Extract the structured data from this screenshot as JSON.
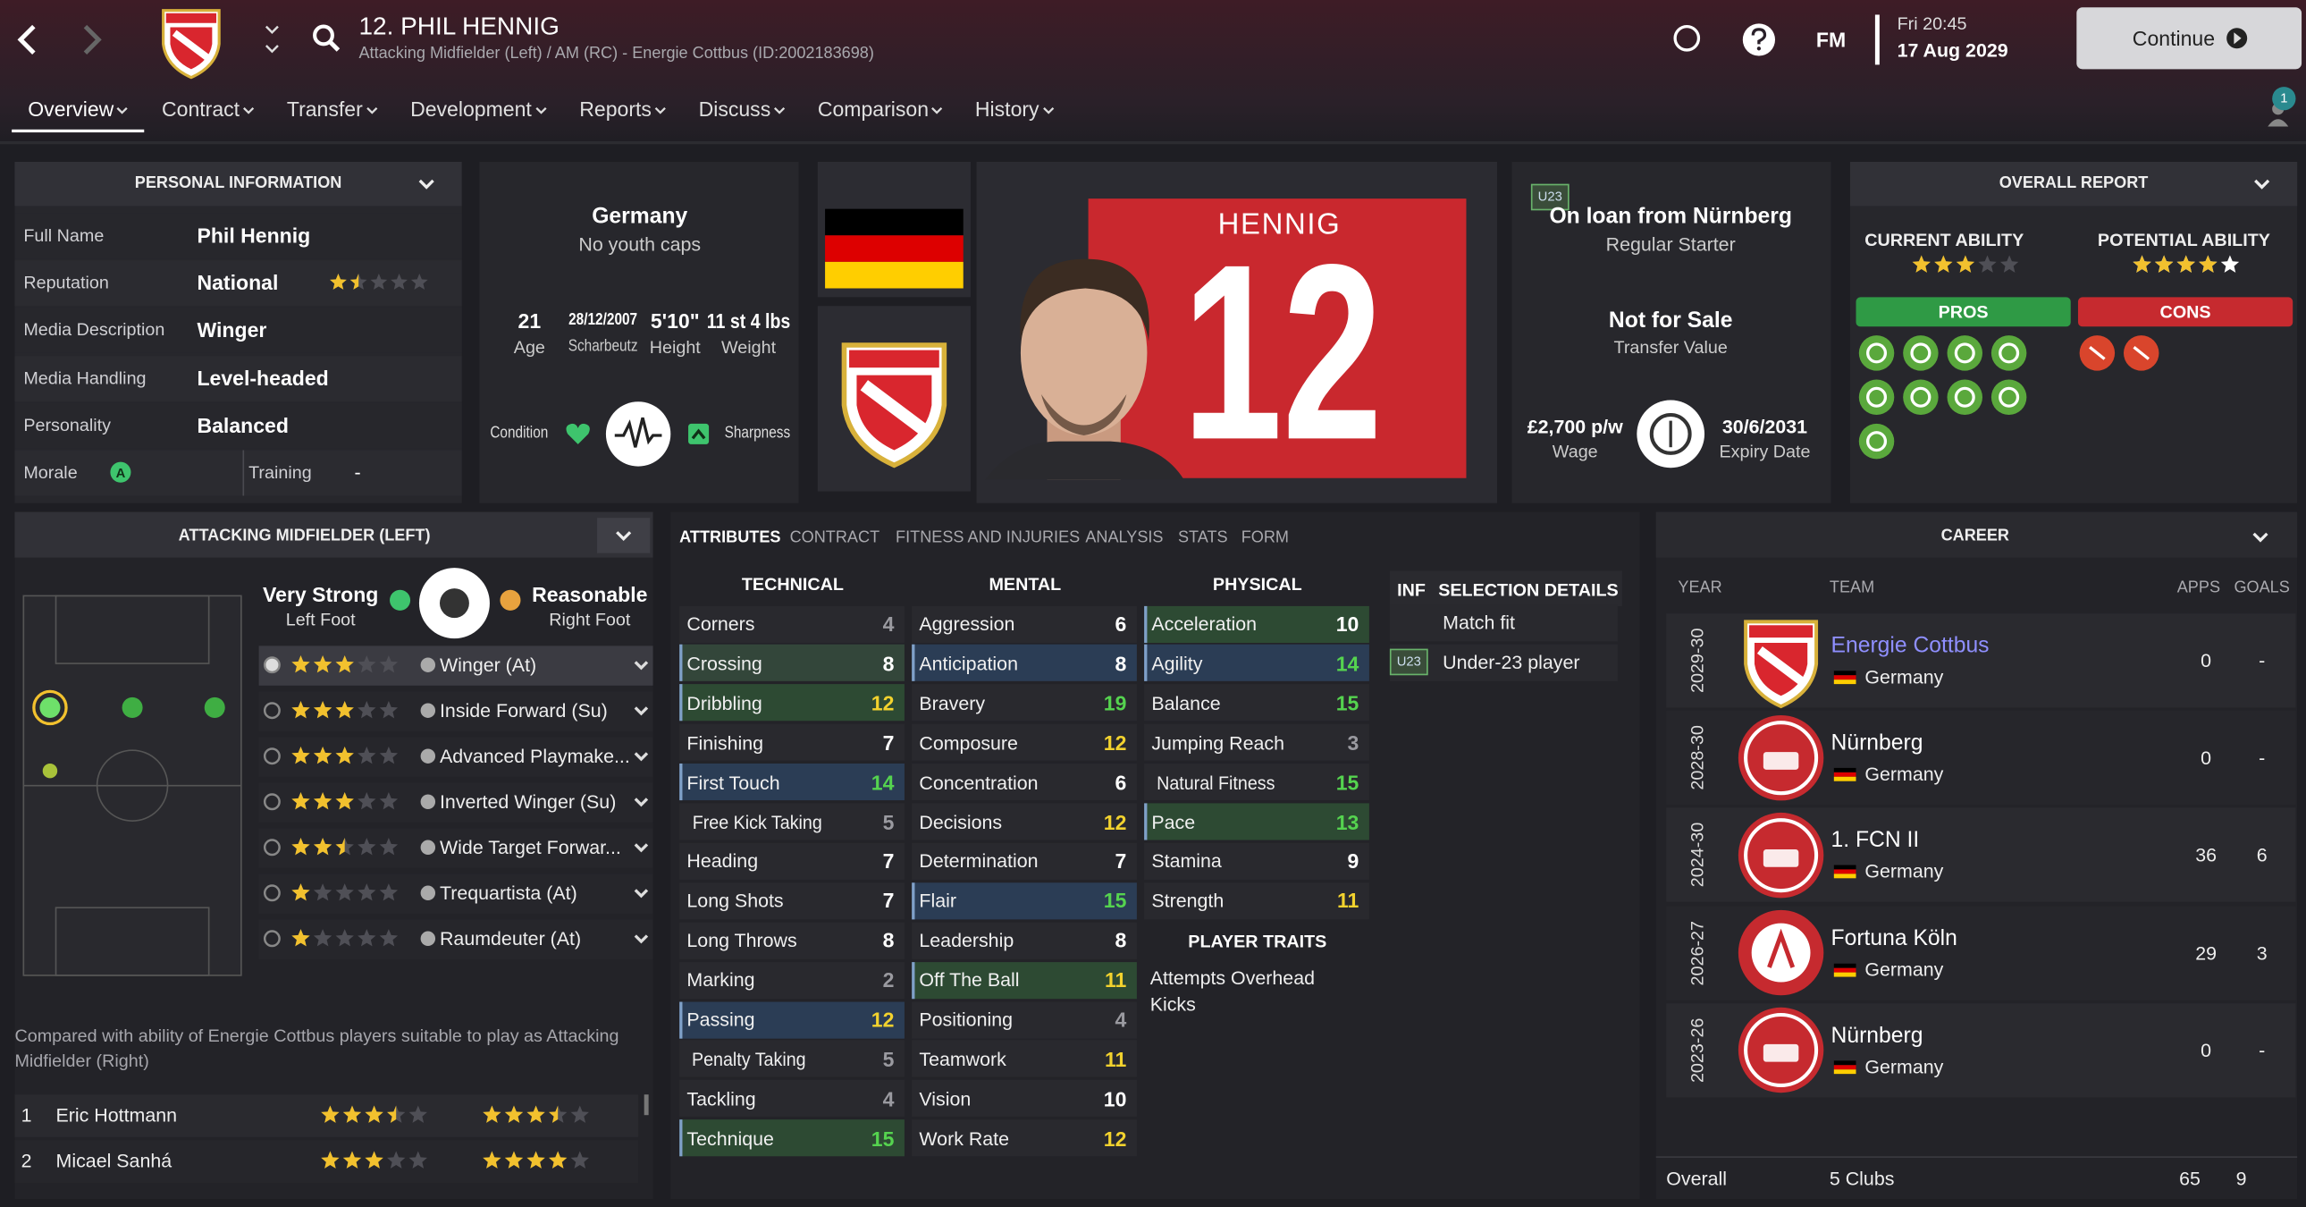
{
  "header": {
    "title": "12. PHIL HENNIG",
    "subtitle": "Attacking Midfielder (Left) / AM (RC) - Energie Cottbus (ID:2002183698)",
    "brand": "FM",
    "time": "Fri 20:45",
    "date": "17 Aug 2029",
    "button": "Continue",
    "notifications": "1"
  },
  "nav": [
    "Overview",
    "Contract",
    "Transfer",
    "Development",
    "Reports",
    "Discuss",
    "Comparison",
    "History"
  ],
  "personal": {
    "title": "PERSONAL INFORMATION",
    "rows": [
      {
        "label": "Full Name",
        "value": "Phil Hennig"
      },
      {
        "label": "Reputation",
        "value": "National",
        "stars": 1.5
      },
      {
        "label": "Media Description",
        "value": "Winger"
      },
      {
        "label": "Media Handling",
        "value": "Level-headed"
      },
      {
        "label": "Personality",
        "value": "Balanced"
      }
    ],
    "morale": {
      "label": "Morale",
      "icon": "A"
    },
    "training": {
      "label": "Training",
      "value": "-"
    }
  },
  "bio": {
    "nationality": "Germany",
    "youth": "No youth caps",
    "stats": [
      {
        "value": 21,
        "label": "Age"
      },
      {
        "value": "28/12/2007",
        "label": "Scharbeutz"
      },
      {
        "value": "5'10\"",
        "label": "Height"
      },
      {
        "value": "11 st 4 lbs",
        "label": "Weight"
      }
    ],
    "condition": "Condition",
    "sharpness": "Sharpness"
  },
  "shirt": {
    "name": "HENNIG",
    "number": 12
  },
  "status": {
    "badge": "U23",
    "loan": "On loan from Nürnberg",
    "role": "Regular Starter",
    "transfer": "Not for Sale",
    "transfer_label": "Transfer Value",
    "wage": "£2,700 p/w",
    "wage_label": "Wage",
    "expiry": "30/6/2031",
    "expiry_label": "Expiry Date"
  },
  "report": {
    "title": "OVERALL REPORT",
    "current_label": "CURRENT ABILITY",
    "current": 3,
    "potential_label": "POTENTIAL ABILITY",
    "potential": [
      4,
      5
    ],
    "pros": "PROS",
    "cons": "CONS"
  },
  "position": {
    "title": "ATTACKING MIDFIELDER (LEFT)",
    "left_foot": {
      "rating": "Very Strong",
      "label": "Left Foot"
    },
    "right_foot": {
      "rating": "Reasonable",
      "label": "Right Foot"
    },
    "roles": [
      {
        "name": "Winger (At)",
        "stars": 3
      },
      {
        "name": "Inside Forward (Su)",
        "stars": 3
      },
      {
        "name": "Advanced Playmake...",
        "stars": 3
      },
      {
        "name": "Inverted Winger (Su)",
        "stars": 3
      },
      {
        "name": "Wide Target Forwar...",
        "stars": 2.5
      },
      {
        "name": "Trequartista (At)",
        "stars": 1
      },
      {
        "name": "Raumdeuter (At)",
        "stars": 1
      }
    ],
    "note": "Compared with ability of Energie Cottbus players suitable to play as Attacking Midfielder (Right)",
    "comparison": [
      {
        "rank": 1,
        "name": "Eric Hottmann",
        "current": 3.5,
        "potential": 3.5
      },
      {
        "rank": 2,
        "name": "Micael Sanhá",
        "current": 3,
        "potential": 4
      }
    ]
  },
  "attributes": {
    "tabs": [
      "ATTRIBUTES",
      "CONTRACT",
      "FITNESS AND INJURIES",
      "ANALYSIS",
      "STATS",
      "FORM"
    ],
    "groups": [
      {
        "title": "TECHNICAL",
        "items": [
          {
            "name": "Corners",
            "value": 4
          },
          {
            "name": "Crossing",
            "value": 8,
            "color": "#33463a"
          },
          {
            "name": "Dribbling",
            "value": 12,
            "color": "#2d4a33"
          },
          {
            "name": "Finishing",
            "value": 7
          },
          {
            "name": "First Touch",
            "value": 14,
            "color": "#2b3d55"
          },
          {
            "name": "Free Kick Taking",
            "value": 5
          },
          {
            "name": "Heading",
            "value": 7
          },
          {
            "name": "Long Shots",
            "value": 7
          },
          {
            "name": "Long Throws",
            "value": 8
          },
          {
            "name": "Marking",
            "value": 2
          },
          {
            "name": "Passing",
            "value": 12,
            "color": "#2b3d55"
          },
          {
            "name": "Penalty Taking",
            "value": 5
          },
          {
            "name": "Tackling",
            "value": 4
          },
          {
            "name": "Technique",
            "value": 15,
            "color": "#2d4a33"
          }
        ]
      },
      {
        "title": "MENTAL",
        "items": [
          {
            "name": "Aggression",
            "value": 6
          },
          {
            "name": "Anticipation",
            "value": 8,
            "color": "#2b3d55"
          },
          {
            "name": "Bravery",
            "value": 19
          },
          {
            "name": "Composure",
            "value": 12
          },
          {
            "name": "Concentration",
            "value": 6
          },
          {
            "name": "Decisions",
            "value": 12
          },
          {
            "name": "Determination",
            "value": 7
          },
          {
            "name": "Flair",
            "value": 15,
            "color": "#2b3d55"
          },
          {
            "name": "Leadership",
            "value": 8
          },
          {
            "name": "Off The Ball",
            "value": 11,
            "color": "#2d4a33"
          },
          {
            "name": "Positioning",
            "value": 4
          },
          {
            "name": "Teamwork",
            "value": 11
          },
          {
            "name": "Vision",
            "value": 10
          },
          {
            "name": "Work Rate",
            "value": 12
          }
        ]
      },
      {
        "title": "PHYSICAL",
        "items": [
          {
            "name": "Acceleration",
            "value": 10,
            "color": "#2d4a33"
          },
          {
            "name": "Agility",
            "value": 14,
            "color": "#2b3d55"
          },
          {
            "name": "Balance",
            "value": 15
          },
          {
            "name": "Jumping Reach",
            "value": 3
          },
          {
            "name": "Natural Fitness",
            "value": 15
          },
          {
            "name": "Pace",
            "value": 13,
            "color": "#2d4a33"
          },
          {
            "name": "Stamina",
            "value": 9
          },
          {
            "name": "Strength",
            "value": 11
          }
        ]
      }
    ],
    "traits_title": "PLAYER TRAITS",
    "traits": [
      "Attempts Overhead Kicks"
    ],
    "selection": {
      "inf": "INF",
      "title": "SELECTION DETAILS",
      "rows": [
        {
          "text": "Match fit"
        },
        {
          "badge": "U23",
          "text": "Under-23 player"
        }
      ]
    }
  },
  "career": {
    "title": "CAREER",
    "columns": [
      "YEAR",
      "TEAM",
      "APPS",
      "GOALS"
    ],
    "rows": [
      {
        "year": "2029-30",
        "team": "Energie Cottbus",
        "country": "Germany",
        "apps": 0,
        "goals": "-"
      },
      {
        "year": "2028-30",
        "team": "Nürnberg",
        "country": "Germany",
        "apps": 0,
        "goals": "-"
      },
      {
        "year": "2024-30",
        "team": "1. FCN II",
        "country": "Germany",
        "apps": 36,
        "goals": 6
      },
      {
        "year": "2026-27",
        "team": "Fortuna Köln",
        "country": "Germany",
        "apps": 29,
        "goals": 3
      },
      {
        "year": "2023-26",
        "team": "Nürnberg",
        "country": "Germany",
        "apps": 0,
        "goals": "-"
      }
    ],
    "total": {
      "label": "Overall",
      "clubs": "5 Clubs",
      "apps": 65,
      "goals": 9
    }
  }
}
